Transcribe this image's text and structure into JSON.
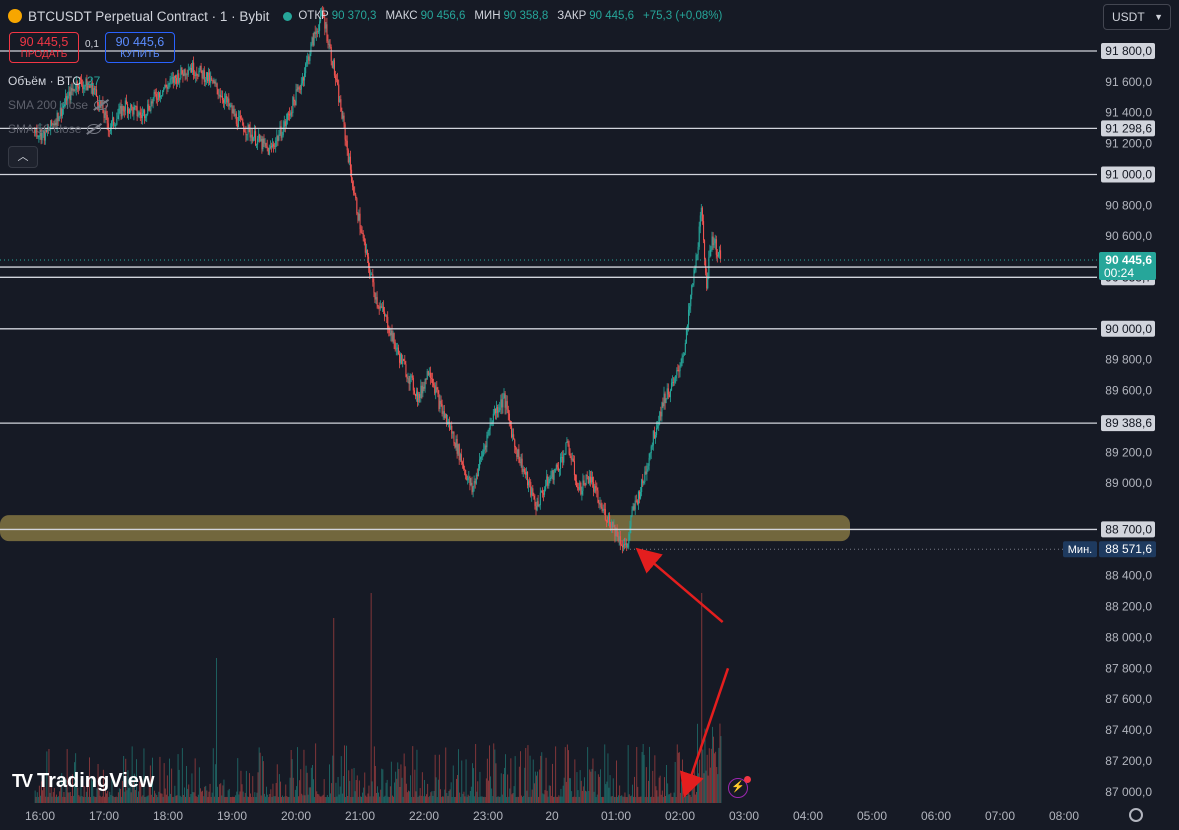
{
  "header": {
    "symbol": "BTCUSDT Perpetual Contract · 1 · Bybit",
    "open_label": "ОТКР",
    "open": "90 370,3",
    "high_label": "МАКС",
    "high": "90 456,6",
    "low_label": "МИН",
    "low": "90 358,8",
    "close_label": "ЗАКР",
    "close": "90 445,6",
    "change": "+75,3 (+0,08%)"
  },
  "trade": {
    "sell_price": "90 445,5",
    "sell_label": "ПРОДАТЬ",
    "spread": "0,1",
    "buy_price": "90 445,6",
    "buy_label": "КУПИТЬ"
  },
  "indicators": {
    "volume_label": "Объём · BTC",
    "volume_value": "27",
    "sma200": "SMA 200 close",
    "sma50": "SMA 50 close",
    "collapse_icon": "chevron-up-icon"
  },
  "currency_selector": {
    "value": "USDT"
  },
  "branding": {
    "logo_text": "TradingView"
  },
  "colors": {
    "background": "#161a25",
    "up": "#26a69a",
    "down": "#ef5350",
    "level_line": "#d1d4dc",
    "support_zone": "#8a7a44",
    "arrow": "#e41e1e",
    "current_price_bg": "#26a69a",
    "min_label_bg": "#1e3a5f"
  },
  "chart_data": {
    "type": "candlestick",
    "series": [
      {
        "name": "Price path",
        "values_note": "BTCUSDT 1-minute close path, approximate",
        "points": [
          [
            "15:55",
            91290
          ],
          [
            "16:05",
            91250
          ],
          [
            "16:20",
            91420
          ],
          [
            "16:35",
            91600
          ],
          [
            "16:50",
            91560
          ],
          [
            "17:05",
            91300
          ],
          [
            "17:20",
            91450
          ],
          [
            "17:35",
            91380
          ],
          [
            "17:50",
            91520
          ],
          [
            "18:05",
            91610
          ],
          [
            "18:20",
            91700
          ],
          [
            "18:35",
            91640
          ],
          [
            "18:50",
            91520
          ],
          [
            "19:05",
            91350
          ],
          [
            "19:20",
            91250
          ],
          [
            "19:35",
            91150
          ],
          [
            "19:50",
            91330
          ],
          [
            "20:05",
            91600
          ],
          [
            "20:15",
            91850
          ],
          [
            "20:25",
            92050
          ],
          [
            "20:35",
            91700
          ],
          [
            "20:45",
            91300
          ],
          [
            "20:55",
            90850
          ],
          [
            "21:05",
            90500
          ],
          [
            "21:15",
            90200
          ],
          [
            "21:25",
            90050
          ],
          [
            "21:35",
            89850
          ],
          [
            "21:45",
            89700
          ],
          [
            "21:55",
            89550
          ],
          [
            "22:05",
            89750
          ],
          [
            "22:15",
            89500
          ],
          [
            "22:25",
            89350
          ],
          [
            "22:35",
            89150
          ],
          [
            "22:45",
            88950
          ],
          [
            "22:55",
            89200
          ],
          [
            "23:05",
            89450
          ],
          [
            "23:15",
            89550
          ],
          [
            "23:25",
            89250
          ],
          [
            "23:35",
            89050
          ],
          [
            "23:45",
            88850
          ],
          [
            "23:55",
            89000
          ],
          [
            "00:05",
            89100
          ],
          [
            "00:15",
            89250
          ],
          [
            "00:25",
            88950
          ],
          [
            "00:35",
            89050
          ],
          [
            "00:45",
            88850
          ],
          [
            "00:55",
            88750
          ],
          [
            "01:05",
            88620
          ],
          [
            "01:10",
            88580
          ],
          [
            "01:15",
            88800
          ],
          [
            "01:25",
            89000
          ],
          [
            "01:35",
            89300
          ],
          [
            "01:45",
            89550
          ],
          [
            "01:55",
            89650
          ],
          [
            "02:05",
            89900
          ],
          [
            "02:10",
            90200
          ],
          [
            "02:15",
            90450
          ],
          [
            "02:20",
            90750
          ],
          [
            "02:25",
            90300
          ],
          [
            "02:30",
            90600
          ],
          [
            "02:35",
            90500
          ],
          [
            "02:38",
            90445.6
          ]
        ]
      }
    ],
    "volume_series": {
      "name": "Объём · BTC",
      "spikes": [
        [
          "18:45",
          145
        ],
        [
          "20:35",
          185
        ],
        [
          "21:10",
          210
        ],
        [
          "02:20",
          210
        ]
      ]
    },
    "price_axis": {
      "ylim": [
        86950,
        92150
      ],
      "ticks": [
        "91 800,0",
        "91 600,0",
        "91 400,0",
        "91 200,0",
        "91 000,0",
        "90 800,0",
        "90 600,0",
        "90 400,0",
        "90 000,0",
        "89 800,0",
        "89 600,0",
        "89 200,0",
        "89 000,0",
        "88 700,0",
        "88 400,0",
        "88 200,0",
        "88 000,0",
        "87 800,0",
        "87 600,0",
        "87 400,0",
        "87 200,0",
        "87 000,0"
      ]
    },
    "time_axis": {
      "ticks": [
        "16:00",
        "17:00",
        "18:00",
        "19:00",
        "20:00",
        "21:00",
        "22:00",
        "23:00",
        "20",
        "01:00",
        "02:00",
        "03:00",
        "04:00",
        "05:00",
        "06:00",
        "07:00",
        "08:00"
      ]
    },
    "horizontal_levels": [
      {
        "value": 91800,
        "label": "91 800,0"
      },
      {
        "value": 91298.6,
        "label": "91 298,6"
      },
      {
        "value": 91000,
        "label": "91 000,0"
      },
      {
        "value": 90400,
        "label": "90 400,0"
      },
      {
        "value": 90333.7,
        "label": "90 333,7"
      },
      {
        "value": 90000,
        "label": "90 000,0"
      },
      {
        "value": 89388.6,
        "label": "89 388,6"
      },
      {
        "value": 88700,
        "label": "88 700,0"
      }
    ],
    "current_price": {
      "value": 90445.6,
      "label": "90 445,6",
      "countdown": "00:24"
    },
    "min_marker": {
      "value": 88571.6,
      "label": "88 571,6",
      "tag": "Мин."
    },
    "support_zone": {
      "from": 88650,
      "to": 88780
    },
    "annotations": [
      {
        "type": "arrow",
        "from": [
          "02:40",
          88100
        ],
        "to": [
          "01:22",
          88560
        ]
      },
      {
        "type": "arrow",
        "from": [
          "02:45",
          87800
        ],
        "to": [
          "02:05",
          86990
        ]
      }
    ],
    "grid": false
  }
}
